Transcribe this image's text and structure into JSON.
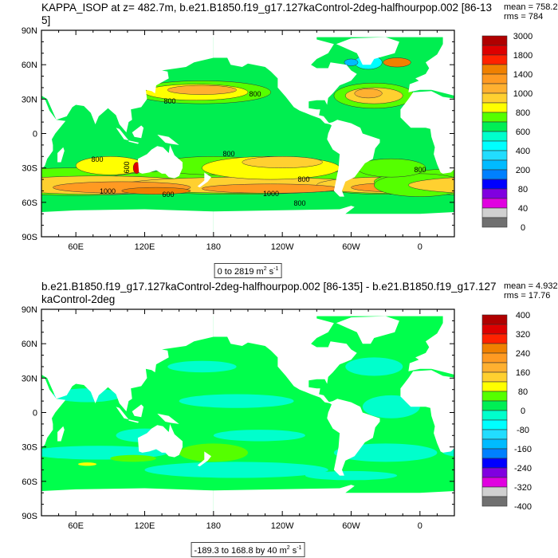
{
  "panels": [
    {
      "title": "KAPPA_ISOP at z= 482.7m, b.e21.B1850.f19_g17.127kaControl-2deg-halfhourpop.002 [86-135]",
      "mean": "mean = 758.2",
      "rms": "rms = 784",
      "range": {
        "text": "0 to 2819 m",
        "exp1": "2",
        "mid": " s",
        "exp2": "-1"
      },
      "ocean_color": "#00ee50",
      "colorbar_labels": [
        "3000",
        "1800",
        "1400",
        "1000",
        "800",
        "600",
        "400",
        "200",
        "80",
        "40",
        "0"
      ],
      "contour_labels": [
        "800",
        "800",
        "800",
        "600",
        "800",
        "800",
        "800",
        "1000",
        "600",
        "1000",
        "800"
      ]
    },
    {
      "title": "b.e21.B1850.f19_g17.127kaControl-2deg-halfhourpop.002 [86-135] - b.e21.B1850.f19_g17.127kaControl-2deg",
      "mean": "mean = 4.932",
      "rms": "rms = 17.76",
      "range": {
        "text": "-189.3 to 168.8 by 40 m",
        "exp1": "2",
        "mid": " s",
        "exp2": "-1"
      },
      "ocean_color": "#00ff4c",
      "colorbar_labels": [
        "400",
        "320",
        "240",
        "160",
        "80",
        "0",
        "-80",
        "-160",
        "-240",
        "-320",
        "-400"
      ],
      "contour_labels": []
    }
  ],
  "colorbar_colors": [
    "#b00000",
    "#dd0000",
    "#ff2200",
    "#f08000",
    "#ff9a22",
    "#ffb030",
    "#ffd030",
    "#ffff00",
    "#55ff00",
    "#00ee55",
    "#00ffcc",
    "#00ffff",
    "#22ddff",
    "#00bbff",
    "#0080ff",
    "#0000ff",
    "#8000e0",
    "#e000e0",
    "#d0d0d0",
    "#707070"
  ],
  "axes": {
    "lat_labels": [
      "90N",
      "60N",
      "30N",
      "0",
      "30S",
      "60S",
      "90S"
    ],
    "lon_labels": [
      "60E",
      "120E",
      "180",
      "120W",
      "60W",
      "0"
    ]
  }
}
